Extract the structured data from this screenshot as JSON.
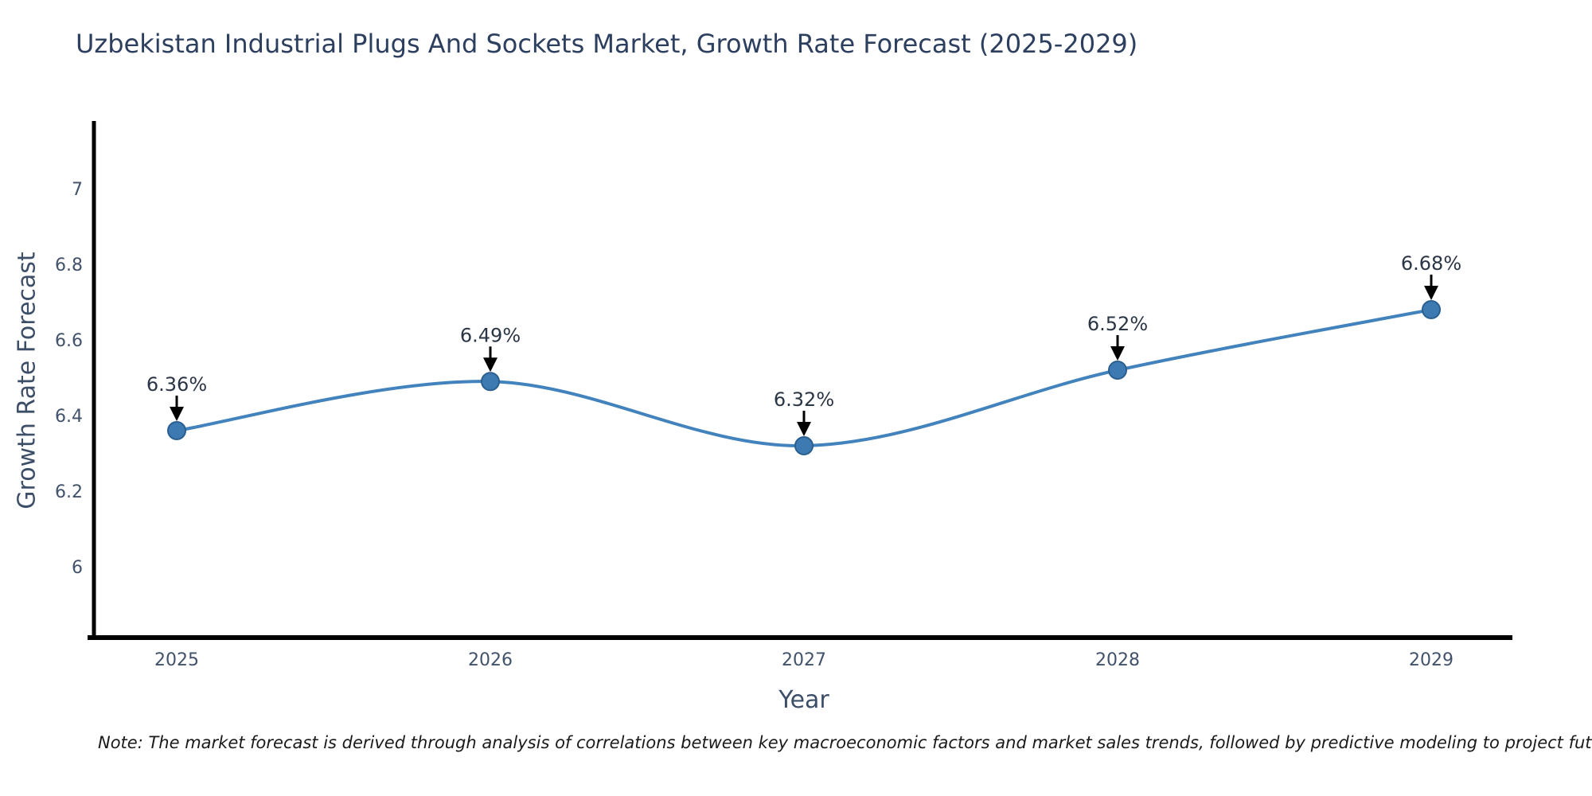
{
  "title": "Uzbekistan Industrial Plugs And Sockets Market, Growth Rate Forecast (2025-2029)",
  "note": "Note: The market forecast is derived through analysis of correlations between key macroeconomic factors and market sales trends, followed by predictive modeling to project future sales",
  "chart_data": {
    "type": "line",
    "title": "Uzbekistan Industrial Plugs And Sockets Market, Growth Rate Forecast (2025-2029)",
    "x": [
      2025,
      2026,
      2027,
      2028,
      2029
    ],
    "xticklabels": [
      "2025",
      "2026",
      "2027",
      "2028",
      "2029"
    ],
    "series": [
      {
        "name": "Growth Rate Forecast",
        "values": [
          6.36,
          6.49,
          6.32,
          6.52,
          6.68
        ]
      }
    ],
    "point_labels": [
      "6.36%",
      "6.49%",
      "6.32%",
      "6.52%",
      "6.68%"
    ],
    "xlabel": "Year",
    "ylabel": "Growth Rate Forecast",
    "yticks": [
      6,
      6.2,
      6.4,
      6.6,
      6.8,
      7
    ],
    "ylim": [
      5.82,
      7.17
    ],
    "grid": false,
    "legend": false,
    "colors": {
      "line": "#4383bd",
      "marker_fill": "#3d7ab2",
      "marker_edge": "#2a5f8f",
      "annotation_text": "#2a3545",
      "arrow": "#000000",
      "spine": "#000000",
      "tick_label": "#42526b",
      "axis_title": "#3d4e68",
      "title": "#2d3f5e"
    }
  }
}
